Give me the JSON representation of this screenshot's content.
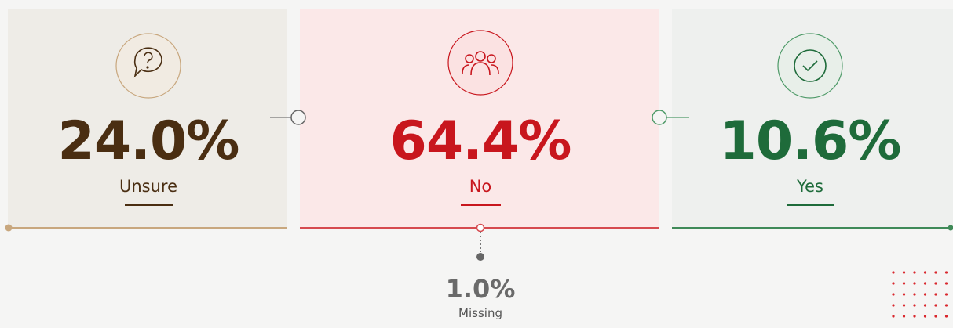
{
  "cards": [
    {
      "value": "24.0%",
      "label": "Unsure"
    },
    {
      "value": "64.4%",
      "label": "No"
    },
    {
      "value": "10.6%",
      "label": "Yes"
    }
  ],
  "missing": {
    "value": "1.0%",
    "label": "Missing"
  }
}
